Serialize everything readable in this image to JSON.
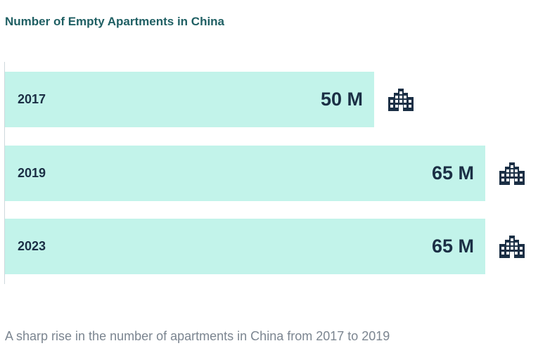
{
  "title": "Number of Empty Apartments in China",
  "caption": "A sharp rise in the number of apartments in China from 2017 to 2019",
  "colors": {
    "bar": "#c2f3ea",
    "text": "#1b2f45",
    "title": "#1f5f63",
    "caption": "#7b8590"
  },
  "icon": "building-icon",
  "chart_data": {
    "type": "bar",
    "orientation": "horizontal",
    "categories": [
      "2017",
      "2019",
      "2023"
    ],
    "values": [
      50,
      65,
      65
    ],
    "value_labels": [
      "50 M",
      "65 M",
      "65 M"
    ],
    "title": "Number of Empty Apartments in China",
    "xlabel": "",
    "ylabel": "",
    "xlim": [
      0,
      70
    ],
    "grid": false
  }
}
